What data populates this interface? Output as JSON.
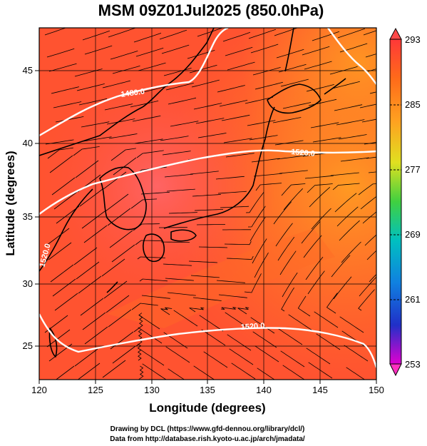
{
  "title": "MSM 09Z01Jul2025 (850.0hPa)",
  "xlabel": "Longitude (degrees)",
  "ylabel": "Latitude  (degrees)",
  "x_ticks": [
    "120",
    "125",
    "130",
    "135",
    "140",
    "145",
    "150"
  ],
  "y_ticks": [
    "25",
    "30",
    "35",
    "40",
    "45"
  ],
  "colorbar": {
    "ticks": [
      "293",
      "285",
      "277",
      "269",
      "261",
      "253"
    ],
    "min": 253,
    "max": 293
  },
  "contour_labels": [
    {
      "text": "1480.0"
    },
    {
      "text": "1520.0",
      "where": "east"
    },
    {
      "text": "1520.0",
      "where": "west"
    },
    {
      "text": "1520.0",
      "where": "south"
    }
  ],
  "credit": {
    "line1": "Drawing by DCL (https://www.gfd-dennou.org/library/dcl/)",
    "line2": "Data from http://database.rish.kyoto-u.ac.jp/arch/jmadata/"
  },
  "chart_data": {
    "type": "heatmap",
    "title": "MSM 09Z01Jul2025 (850.0hPa)",
    "xlabel": "Longitude (degrees)",
    "ylabel": "Latitude  (degrees)",
    "xlim": [
      120,
      150
    ],
    "ylim": [
      22.4,
      47.6
    ],
    "colorbar_range": [
      253,
      293
    ],
    "colormap": [
      "#e000c0",
      "#2040e0",
      "#00c0e0",
      "#00c040",
      "#e0e020",
      "#ff9900",
      "#ff3030"
    ],
    "field_color_dominant": "#ff4a2c",
    "grid": true,
    "overlays": [
      "streamlines",
      "geopotential height contours (white)",
      "coastlines"
    ]
  }
}
